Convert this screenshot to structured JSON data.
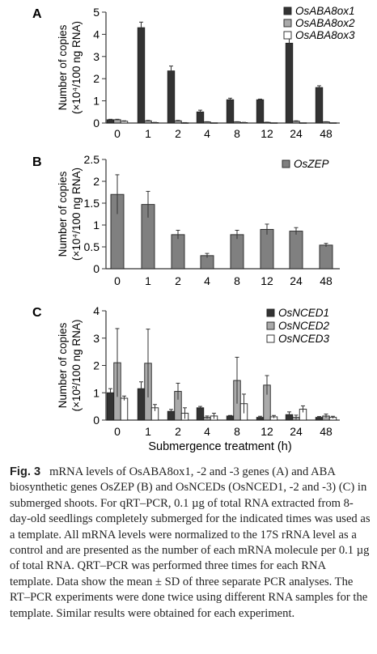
{
  "chart_data": [
    {
      "type": "bar",
      "panel_label": "A",
      "ylabel_lines": [
        "Number of copies",
        "(×10⁴/100 ng RNA)"
      ],
      "ylim": [
        0,
        5
      ],
      "yticks": [
        0,
        1,
        2,
        3,
        4,
        5
      ],
      "categories": [
        "0",
        "1",
        "2",
        "4",
        "8",
        "12",
        "24",
        "48"
      ],
      "legend_position": "top-right",
      "series": [
        {
          "name": "OsABA8ox1",
          "color": "#333333",
          "values": [
            0.15,
            4.3,
            2.35,
            0.5,
            1.05,
            1.05,
            3.6,
            1.6
          ],
          "errors": [
            0.02,
            0.25,
            0.22,
            0.08,
            0.07,
            0.03,
            0.35,
            0.08
          ]
        },
        {
          "name": "OsABA8ox2",
          "color": "#aaaaaa",
          "values": [
            0.15,
            0.1,
            0.1,
            0.05,
            0.05,
            0.03,
            0.08,
            0.05
          ],
          "errors": [
            0.02,
            0.02,
            0.02,
            0.01,
            0.01,
            0.01,
            0.02,
            0.01
          ]
        },
        {
          "name": "OsABA8ox3",
          "color": "#ffffff",
          "values": [
            0.08,
            0.02,
            0.01,
            0.01,
            0.02,
            0.01,
            0.01,
            0.01
          ],
          "errors": [
            0.02,
            0.01,
            0.01,
            0.0,
            0.01,
            0.0,
            0.0,
            0.0
          ]
        }
      ]
    },
    {
      "type": "bar",
      "panel_label": "B",
      "ylabel_lines": [
        "Number of copies",
        "(×10⁴/100 ng RNA)"
      ],
      "ylim": [
        0,
        2.5
      ],
      "yticks": [
        0,
        0.5,
        1,
        1.5,
        2,
        2.5
      ],
      "ytick_labels": [
        "0",
        "0.5",
        "1",
        "1.5",
        "2",
        "2.5"
      ],
      "categories": [
        "0",
        "1",
        "2",
        "4",
        "8",
        "12",
        "24",
        "48"
      ],
      "legend_position": "top-right",
      "series": [
        {
          "name": "OsZEP",
          "color": "#808080",
          "values": [
            1.7,
            1.47,
            0.78,
            0.3,
            0.78,
            0.9,
            0.86,
            0.54
          ],
          "errors": [
            0.45,
            0.3,
            0.1,
            0.05,
            0.1,
            0.12,
            0.08,
            0.04
          ]
        }
      ]
    },
    {
      "type": "bar",
      "panel_label": "C",
      "ylabel_lines": [
        "Number of copies",
        "(×10²/100 ng RNA)"
      ],
      "xlabel": "Submergence treatment (h)",
      "ylim": [
        0,
        4
      ],
      "yticks": [
        0,
        1,
        2,
        3,
        4
      ],
      "categories": [
        "0",
        "1",
        "2",
        "4",
        "8",
        "12",
        "24",
        "48"
      ],
      "legend_position": "top-right",
      "series": [
        {
          "name": "OsNCED1",
          "color": "#333333",
          "values": [
            1.0,
            1.15,
            0.32,
            0.45,
            0.15,
            0.1,
            0.2,
            0.1
          ],
          "errors": [
            0.15,
            0.25,
            0.07,
            0.05,
            0.02,
            0.04,
            0.1,
            0.03
          ]
        },
        {
          "name": "OsNCED2",
          "color": "#aaaaaa",
          "values": [
            2.1,
            2.08,
            1.05,
            0.1,
            1.45,
            1.28,
            0.1,
            0.15
          ],
          "errors": [
            1.25,
            1.25,
            0.3,
            0.05,
            0.85,
            0.35,
            0.08,
            0.07
          ]
        },
        {
          "name": "OsNCED3",
          "color": "#ffffff",
          "values": [
            0.8,
            0.45,
            0.25,
            0.15,
            0.6,
            0.12,
            0.4,
            0.1
          ],
          "errors": [
            0.08,
            0.12,
            0.2,
            0.1,
            0.35,
            0.05,
            0.12,
            0.04
          ]
        }
      ]
    }
  ],
  "caption": {
    "lead": "Fig. 3",
    "text": "mRNA levels of OsABA8ox1, -2 and -3 genes (A) and ABA biosynthetic genes OsZEP (B) and OsNCEDs (OsNCED1, -2 and -3) (C) in submerged shoots. For qRT–PCR, 0.1 µg of total RNA extracted from 8-day-old seedlings completely submerged for the indicated times was used as a template. All mRNA levels were normalized to the 17S rRNA level as a control and are presented as the number of each mRNA molecule per 0.1 µg of total RNA. QRT–PCR was performed three times for each RNA template. Data show the mean ± SD of three separate PCR analyses. The RT–PCR experiments were done twice using different RNA samples for the template. Similar results were obtained for each experiment."
  }
}
